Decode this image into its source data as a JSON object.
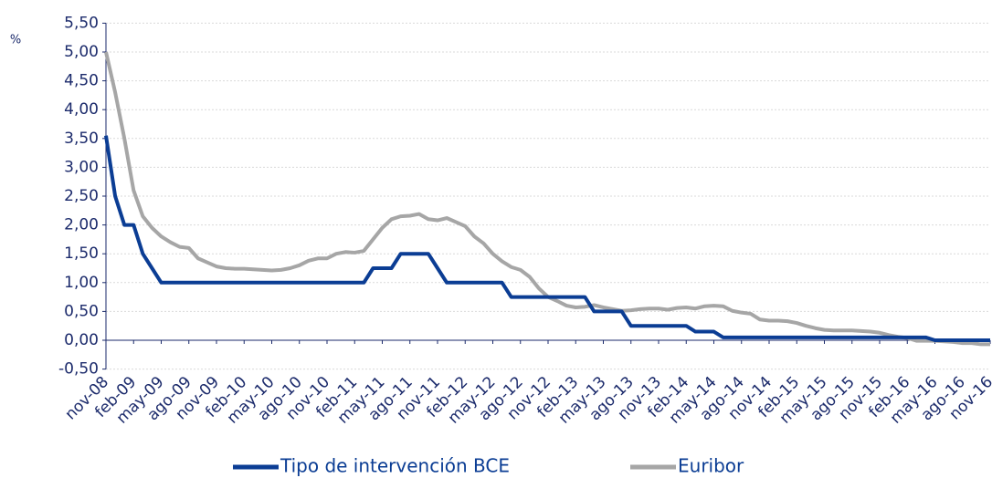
{
  "chart_data": {
    "type": "line",
    "ylabel": "%",
    "categories": [
      "nov-08",
      null,
      null,
      "feb-09",
      null,
      null,
      "may-09",
      null,
      null,
      "ago-09",
      null,
      null,
      "nov-09",
      null,
      null,
      "feb-10",
      null,
      null,
      "may-10",
      null,
      null,
      "ago-10",
      null,
      null,
      "nov-10",
      null,
      null,
      "feb-11",
      null,
      null,
      "may-11",
      null,
      null,
      "ago-11",
      null,
      null,
      "nov-11",
      null,
      null,
      "feb-12",
      null,
      null,
      "may-12",
      null,
      null,
      "ago-12",
      null,
      null,
      "nov-12",
      null,
      null,
      "feb-13",
      null,
      null,
      "may-13",
      null,
      null,
      "ago-13",
      null,
      null,
      "nov-13",
      null,
      null,
      "feb-14",
      null,
      null,
      "may-14",
      null,
      null,
      "ago-14",
      null,
      null,
      "nov-14",
      null,
      null,
      "feb-15",
      null,
      null,
      "may-15",
      null,
      null,
      "ago-15",
      null,
      null,
      "nov-15",
      null,
      null,
      "feb-16",
      null,
      null,
      "may-16",
      null,
      null,
      "ago-16",
      null,
      null,
      "nov-16"
    ],
    "series": [
      {
        "name": "Tipo de intervención BCE",
        "color": "#0b3d94",
        "values": [
          3.55,
          2.5,
          2.0,
          2.0,
          1.5,
          1.25,
          1.0,
          1.0,
          1.0,
          1.0,
          1.0,
          1.0,
          1.0,
          1.0,
          1.0,
          1.0,
          1.0,
          1.0,
          1.0,
          1.0,
          1.0,
          1.0,
          1.0,
          1.0,
          1.0,
          1.0,
          1.0,
          1.0,
          1.0,
          1.25,
          1.25,
          1.25,
          1.5,
          1.5,
          1.5,
          1.5,
          1.25,
          1.0,
          1.0,
          1.0,
          1.0,
          1.0,
          1.0,
          1.0,
          0.75,
          0.75,
          0.75,
          0.75,
          0.75,
          0.75,
          0.75,
          0.75,
          0.75,
          0.5,
          0.5,
          0.5,
          0.5,
          0.25,
          0.25,
          0.25,
          0.25,
          0.25,
          0.25,
          0.25,
          0.15,
          0.15,
          0.15,
          0.05,
          0.05,
          0.05,
          0.05,
          0.05,
          0.05,
          0.05,
          0.05,
          0.05,
          0.05,
          0.05,
          0.05,
          0.05,
          0.05,
          0.05,
          0.05,
          0.05,
          0.05,
          0.05,
          0.05,
          0.05,
          0.05,
          0.05,
          0.0,
          0.0,
          0.0,
          0.0,
          0.0,
          0.0,
          0.0
        ]
      },
      {
        "name": "Euribor",
        "color": "#a6a6a6",
        "values": [
          5.0,
          4.3,
          3.5,
          2.6,
          2.15,
          1.95,
          1.8,
          1.7,
          1.62,
          1.6,
          1.42,
          1.35,
          1.28,
          1.25,
          1.24,
          1.24,
          1.23,
          1.22,
          1.21,
          1.22,
          1.25,
          1.3,
          1.38,
          1.42,
          1.42,
          1.5,
          1.53,
          1.52,
          1.55,
          1.75,
          1.95,
          2.1,
          2.15,
          2.16,
          2.19,
          2.1,
          2.08,
          2.12,
          2.05,
          1.98,
          1.8,
          1.68,
          1.5,
          1.37,
          1.27,
          1.22,
          1.1,
          0.9,
          0.75,
          0.68,
          0.6,
          0.57,
          0.58,
          0.61,
          0.57,
          0.54,
          0.51,
          0.52,
          0.54,
          0.55,
          0.55,
          0.53,
          0.56,
          0.57,
          0.55,
          0.59,
          0.6,
          0.59,
          0.51,
          0.48,
          0.46,
          0.36,
          0.34,
          0.34,
          0.33,
          0.3,
          0.25,
          0.21,
          0.18,
          0.17,
          0.17,
          0.17,
          0.16,
          0.15,
          0.13,
          0.09,
          0.06,
          0.04,
          -0.01,
          -0.01,
          -0.01,
          -0.02,
          -0.03,
          -0.05,
          -0.05,
          -0.07,
          -0.07
        ]
      }
    ],
    "ylim": [
      -0.5,
      5.5
    ],
    "yticks": [
      {
        "value": -0.5,
        "label": "-0,50"
      },
      {
        "value": 0,
        "label": "0,00"
      },
      {
        "value": 0.5,
        "label": "0,50"
      },
      {
        "value": 1,
        "label": "1,00"
      },
      {
        "value": 1.5,
        "label": "1,50"
      },
      {
        "value": 2,
        "label": "2,00"
      },
      {
        "value": 2.5,
        "label": "2,50"
      },
      {
        "value": 3,
        "label": "3,00"
      },
      {
        "value": 3.5,
        "label": "3,50"
      },
      {
        "value": 4,
        "label": "4,00"
      },
      {
        "value": 4.5,
        "label": "4,50"
      },
      {
        "value": 5,
        "label": "5,00"
      },
      {
        "value": 5.5,
        "label": "5,50"
      }
    ],
    "grid": true,
    "legend": "bottom"
  }
}
